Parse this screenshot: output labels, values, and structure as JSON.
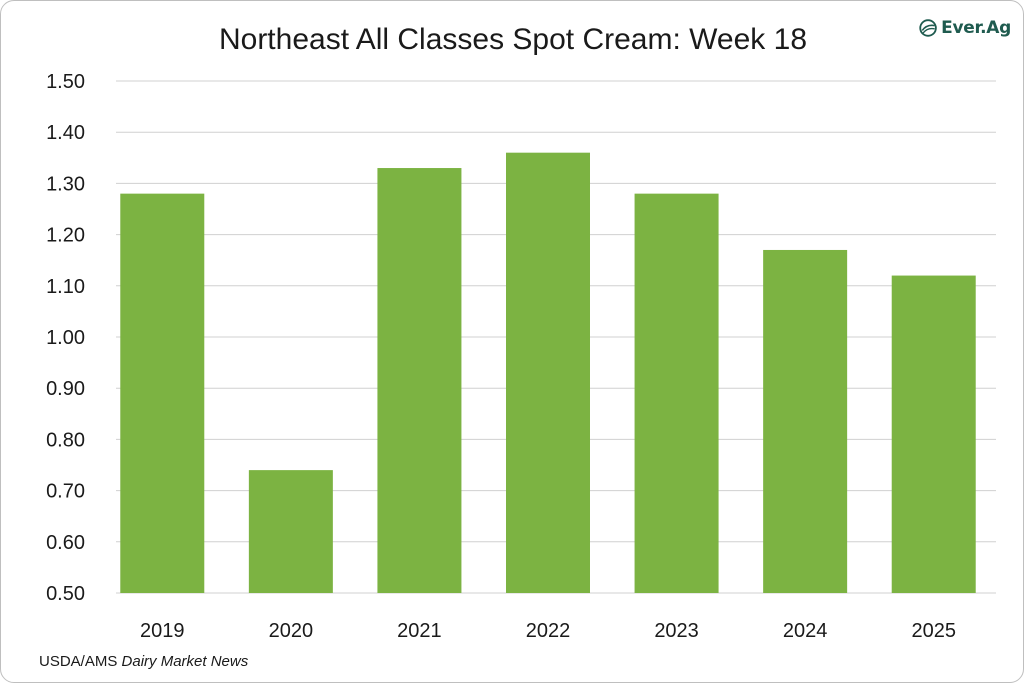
{
  "logo": {
    "text": "Ever.Ag",
    "icon": "ever-ag-leaf-icon",
    "color": "#1f5b4f"
  },
  "source": {
    "prefix": "USDA/AMS",
    "publication": "Dairy Market News"
  },
  "chart_data": {
    "type": "bar",
    "title": "Northeast All Classes Spot Cream: Week 18",
    "categories": [
      "2019",
      "2020",
      "2021",
      "2022",
      "2023",
      "2024",
      "2025"
    ],
    "values": [
      1.28,
      0.74,
      1.33,
      1.36,
      1.28,
      1.17,
      1.12
    ],
    "ylim": [
      0.5,
      1.5
    ],
    "yticks": [
      "0.50",
      "0.60",
      "0.70",
      "0.80",
      "0.90",
      "1.00",
      "1.10",
      "1.20",
      "1.30",
      "1.40",
      "1.50"
    ],
    "xlabel": "",
    "ylabel": "",
    "grid": true,
    "legend": "none",
    "bar_color": "#7cb342"
  }
}
